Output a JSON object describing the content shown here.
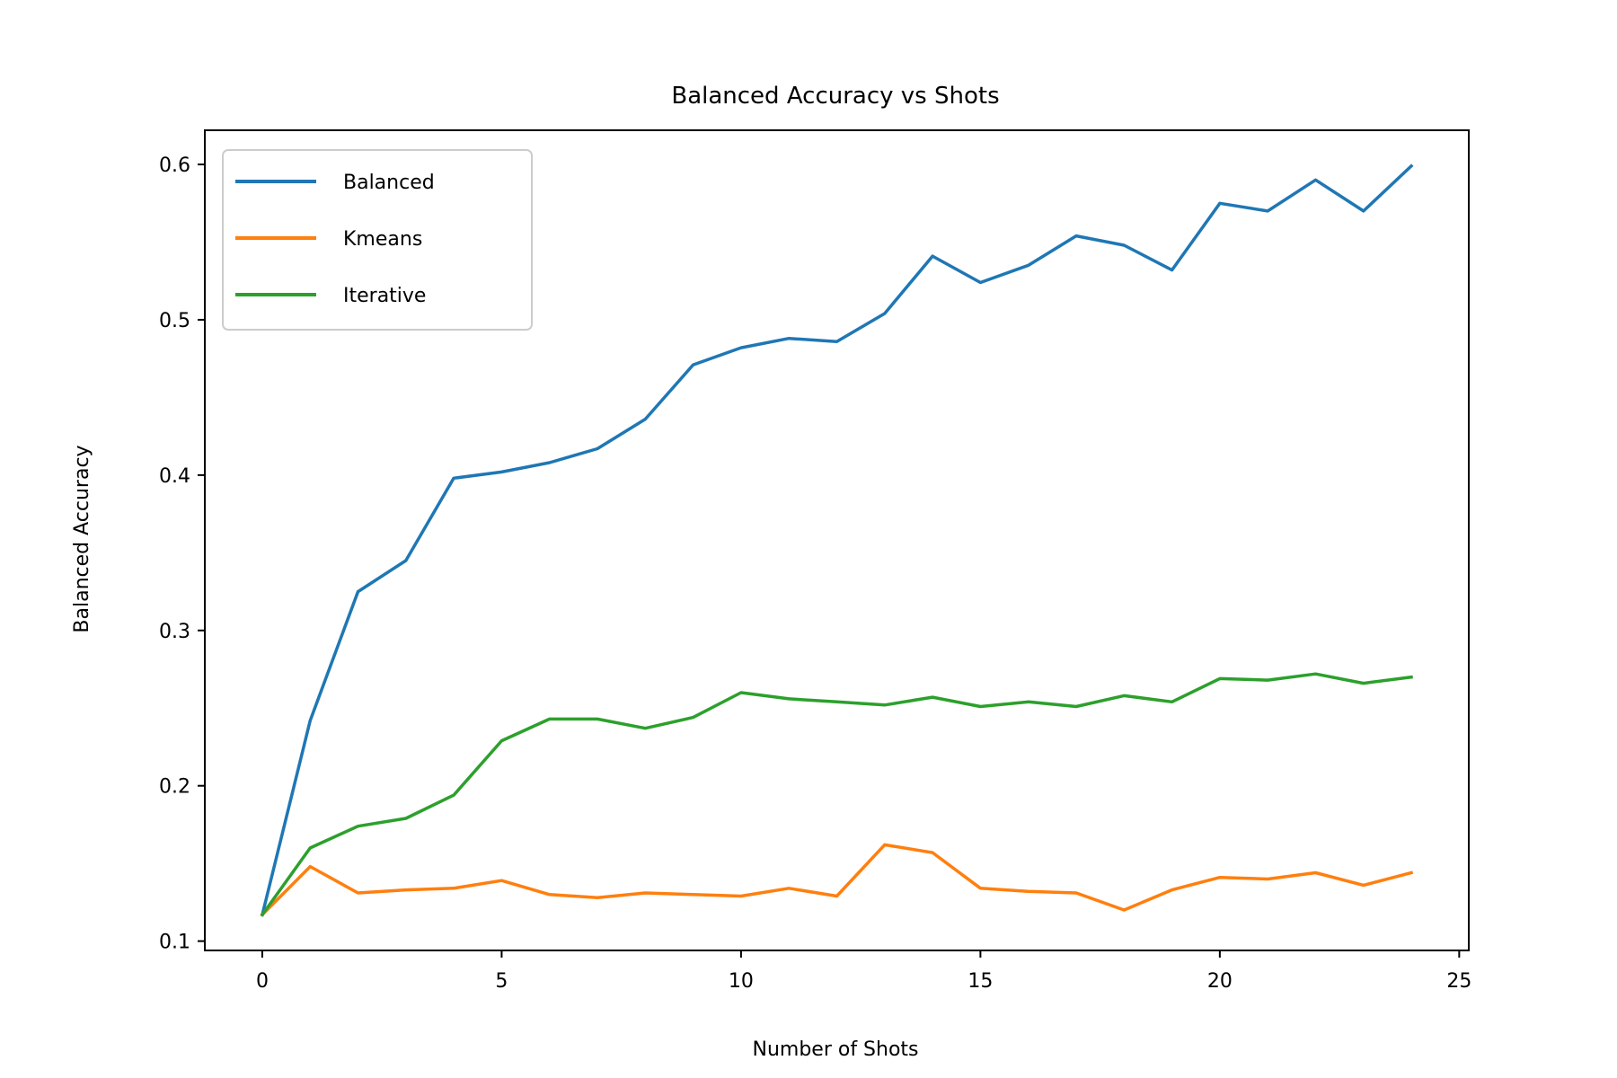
{
  "chart_data": {
    "type": "line",
    "title": "Balanced Accuracy vs Shots",
    "xlabel": "Number of Shots",
    "ylabel": "Balanced Accuracy",
    "xlim": [
      -1.2,
      25.2
    ],
    "ylim": [
      0.094,
      0.622
    ],
    "xticks": [
      0,
      5,
      10,
      15,
      20,
      25
    ],
    "xtick_labels": [
      "0",
      "5",
      "10",
      "15",
      "20",
      "25"
    ],
    "yticks": [
      0.1,
      0.2,
      0.3,
      0.4,
      0.5,
      0.6
    ],
    "ytick_labels": [
      "0.1",
      "0.2",
      "0.3",
      "0.4",
      "0.5",
      "0.6"
    ],
    "grid": false,
    "legend_position": "top-left",
    "x": [
      0,
      1,
      2,
      3,
      4,
      5,
      6,
      7,
      8,
      9,
      10,
      11,
      12,
      13,
      14,
      15,
      16,
      17,
      18,
      19,
      20,
      21,
      22,
      23,
      24
    ],
    "series": [
      {
        "name": "Balanced",
        "color": "#1f77b4",
        "values": [
          0.117,
          0.242,
          0.325,
          0.345,
          0.398,
          0.402,
          0.408,
          0.417,
          0.436,
          0.471,
          0.482,
          0.488,
          0.486,
          0.504,
          0.541,
          0.524,
          0.535,
          0.554,
          0.548,
          0.532,
          0.575,
          0.57,
          0.59,
          0.57,
          0.599
        ]
      },
      {
        "name": "Kmeans",
        "color": "#ff7f0e",
        "values": [
          0.117,
          0.148,
          0.131,
          0.133,
          0.134,
          0.139,
          0.13,
          0.128,
          0.131,
          0.13,
          0.129,
          0.134,
          0.129,
          0.162,
          0.157,
          0.134,
          0.132,
          0.131,
          0.12,
          0.133,
          0.141,
          0.14,
          0.144,
          0.136,
          0.144
        ]
      },
      {
        "name": "Iterative",
        "color": "#2ca02c",
        "values": [
          0.117,
          0.16,
          0.174,
          0.179,
          0.194,
          0.229,
          0.243,
          0.243,
          0.237,
          0.244,
          0.26,
          0.256,
          0.254,
          0.252,
          0.257,
          0.251,
          0.254,
          0.251,
          0.258,
          0.254,
          0.269,
          0.268,
          0.272,
          0.266,
          0.27
        ]
      }
    ]
  }
}
